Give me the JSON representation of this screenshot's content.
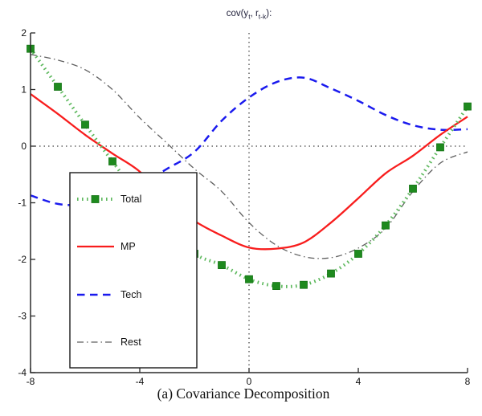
{
  "title_segments": [
    {
      "text": "cov(y",
      "sub": false
    },
    {
      "text": "t",
      "sub": true
    },
    {
      "text": ", r",
      "sub": false
    },
    {
      "text": "t-k",
      "sub": true
    },
    {
      "text": "):",
      "sub": false
    }
  ],
  "caption": "(a) Covariance Decomposition",
  "legend": {
    "items": [
      {
        "label": "Total"
      },
      {
        "label": "MP"
      },
      {
        "label": "Tech"
      },
      {
        "label": "Rest"
      }
    ]
  },
  "colors": {
    "total_line": "#5cb85c",
    "total_marker": "#1e8a1e",
    "mp": "#f81d1d",
    "tech": "#1a1aee",
    "rest": "#5f5f5f",
    "axis": "#2a2a2a",
    "zero_line": "#111111"
  },
  "chart_data": {
    "type": "line",
    "title": "cov(y_t, r_(t-k)):",
    "xlabel": "(a) Covariance Decomposition",
    "ylabel": "",
    "xlim": [
      -8,
      8
    ],
    "ylim": [
      -4,
      2
    ],
    "x_ticks": [
      "-8",
      "-4",
      "0",
      "4",
      "8"
    ],
    "y_ticks": [
      "2",
      "1",
      "0",
      "-1",
      "-2",
      "-3",
      "-4"
    ],
    "grid": "dotted reference lines at x=0 and y=0 only",
    "legend_position": "lower-left inside plot",
    "series": [
      {
        "name": "Total",
        "line_style": "dotted-thick",
        "marker": "square",
        "points": [
          [
            -8,
            1.72
          ],
          [
            -7,
            1.05
          ],
          [
            -6,
            0.38
          ],
          [
            -5,
            -0.27
          ],
          [
            -4,
            -0.9
          ],
          [
            -3,
            -1.45
          ],
          [
            -2,
            -1.9
          ],
          [
            -1,
            -2.1
          ],
          [
            0,
            -2.35
          ],
          [
            1,
            -2.47
          ],
          [
            2,
            -2.45
          ],
          [
            3,
            -2.25
          ],
          [
            4,
            -1.9
          ],
          [
            5,
            -1.4
          ],
          [
            6,
            -0.75
          ],
          [
            7,
            -0.02
          ],
          [
            8,
            0.7
          ]
        ]
      },
      {
        "name": "MP",
        "line_style": "solid",
        "marker": "none",
        "points": [
          [
            -8,
            0.92
          ],
          [
            -7,
            0.57
          ],
          [
            -6,
            0.2
          ],
          [
            -5,
            -0.13
          ],
          [
            -4,
            -0.45
          ],
          [
            -3,
            -0.95
          ],
          [
            -2,
            -1.32
          ],
          [
            -1,
            -1.58
          ],
          [
            0,
            -1.79
          ],
          [
            1,
            -1.81
          ],
          [
            2,
            -1.7
          ],
          [
            3,
            -1.35
          ],
          [
            4,
            -0.92
          ],
          [
            5,
            -0.48
          ],
          [
            6,
            -0.17
          ],
          [
            7,
            0.2
          ],
          [
            8,
            0.52
          ]
        ]
      },
      {
        "name": "Tech",
        "line_style": "dashed",
        "marker": "none",
        "points": [
          [
            -8,
            -0.87
          ],
          [
            -7,
            -1.02
          ],
          [
            -6,
            -1.03
          ],
          [
            -5,
            -0.92
          ],
          [
            -4,
            -0.68
          ],
          [
            -3,
            -0.4
          ],
          [
            -2,
            -0.1
          ],
          [
            -1,
            0.45
          ],
          [
            0,
            0.86
          ],
          [
            1,
            1.13
          ],
          [
            2,
            1.21
          ],
          [
            3,
            1.02
          ],
          [
            4,
            0.8
          ],
          [
            5,
            0.55
          ],
          [
            6,
            0.37
          ],
          [
            7,
            0.29
          ],
          [
            8,
            0.3
          ]
        ]
      },
      {
        "name": "Rest",
        "line_style": "dash-dot",
        "marker": "none",
        "points": [
          [
            -8,
            1.62
          ],
          [
            -7,
            1.52
          ],
          [
            -6,
            1.35
          ],
          [
            -5,
            1.0
          ],
          [
            -4,
            0.5
          ],
          [
            -3,
            0.05
          ],
          [
            -2,
            -0.4
          ],
          [
            -1,
            -0.8
          ],
          [
            0,
            -1.35
          ],
          [
            1,
            -1.75
          ],
          [
            2,
            -1.95
          ],
          [
            3,
            -1.97
          ],
          [
            4,
            -1.8
          ],
          [
            5,
            -1.45
          ],
          [
            6,
            -0.8
          ],
          [
            7,
            -0.3
          ],
          [
            8,
            -0.1
          ]
        ]
      }
    ]
  }
}
